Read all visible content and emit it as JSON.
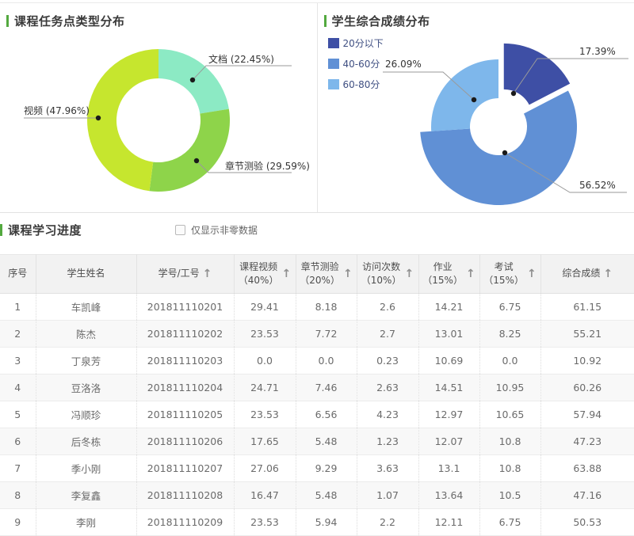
{
  "chart_data": [
    {
      "type": "pie",
      "title": "课程任务点类型分布",
      "donut": true,
      "segments": [
        {
          "label": "文档",
          "pct": 22.45,
          "color": "#8ceac4",
          "callout": "文档 (22.45%)"
        },
        {
          "label": "章节测验",
          "pct": 29.59,
          "color": "#8ed44a",
          "callout": "章节测验 (29.59%)"
        },
        {
          "label": "视频",
          "pct": 47.96,
          "color": "#c6e62e",
          "callout": "视频 (47.96%)"
        }
      ]
    },
    {
      "type": "pie",
      "title": "学生综合成绩分布",
      "donut": true,
      "legend_position": "top-left",
      "legend": [
        {
          "label": "20分以下",
          "color": "#3e4fa5"
        },
        {
          "label": "40-60分",
          "color": "#6090d5"
        },
        {
          "label": "60-80分",
          "color": "#7eb7eb"
        }
      ],
      "segments": [
        {
          "label": "20分以下",
          "pct": 17.39,
          "color": "#3e4fa5",
          "exploded": true,
          "callout": "17.39%"
        },
        {
          "label": "40-60分",
          "pct": 56.52,
          "color": "#6090d5",
          "exploded": false,
          "callout": "56.52%"
        },
        {
          "label": "60-80分",
          "pct": 26.09,
          "color": "#7eb7eb",
          "exploded": false,
          "callout": "26.09%"
        }
      ]
    }
  ],
  "table": {
    "section_title": "课程学习进度",
    "filter_checkbox_label": "仅显示非零数据",
    "columns": [
      {
        "key": "no",
        "lines": [
          "序号"
        ],
        "sortable": false
      },
      {
        "key": "name",
        "lines": [
          "学生姓名"
        ],
        "sortable": false
      },
      {
        "key": "id",
        "lines": [
          "学号/工号"
        ],
        "sortable": true
      },
      {
        "key": "video",
        "lines": [
          "课程视频",
          "（40%）"
        ],
        "sortable": true
      },
      {
        "key": "quiz",
        "lines": [
          "章节测验",
          "（20%）"
        ],
        "sortable": true
      },
      {
        "key": "visits",
        "lines": [
          "访问次数",
          "（10%）"
        ],
        "sortable": true
      },
      {
        "key": "homework",
        "lines": [
          "作业",
          "（15%）"
        ],
        "sortable": true
      },
      {
        "key": "exam",
        "lines": [
          "考试",
          "（15%）"
        ],
        "sortable": true
      },
      {
        "key": "total",
        "lines": [
          "综合成绩"
        ],
        "sortable": true
      }
    ],
    "sort_arrow_icon": "↑",
    "rows": [
      [
        "1",
        "车凯峰",
        "201811110201",
        "29.41",
        "8.18",
        "2.6",
        "14.21",
        "6.75",
        "61.15"
      ],
      [
        "2",
        "陈杰",
        "201811110202",
        "23.53",
        "7.72",
        "2.7",
        "13.01",
        "8.25",
        "55.21"
      ],
      [
        "3",
        "丁泉芳",
        "201811110203",
        "0.0",
        "0.0",
        "0.23",
        "10.69",
        "0.0",
        "10.92"
      ],
      [
        "4",
        "豆洛洛",
        "201811110204",
        "24.71",
        "7.46",
        "2.63",
        "14.51",
        "10.95",
        "60.26"
      ],
      [
        "5",
        "冯顺珍",
        "201811110205",
        "23.53",
        "6.56",
        "4.23",
        "12.97",
        "10.65",
        "57.94"
      ],
      [
        "6",
        "后冬栋",
        "201811110206",
        "17.65",
        "5.48",
        "1.23",
        "12.07",
        "10.8",
        "47.23"
      ],
      [
        "7",
        "季小刚",
        "201811110207",
        "27.06",
        "9.29",
        "3.63",
        "13.1",
        "10.8",
        "63.88"
      ],
      [
        "8",
        "李复鑫",
        "201811110208",
        "16.47",
        "5.48",
        "1.07",
        "13.64",
        "10.5",
        "47.16"
      ],
      [
        "9",
        "李刚",
        "201811110209",
        "23.53",
        "5.94",
        "2.2",
        "12.11",
        "6.75",
        "50.53"
      ]
    ]
  },
  "colors": {
    "accent_green": "#53a93f",
    "leader_line": "#9a9a9a",
    "callout_dot": "#1a1a1a"
  }
}
